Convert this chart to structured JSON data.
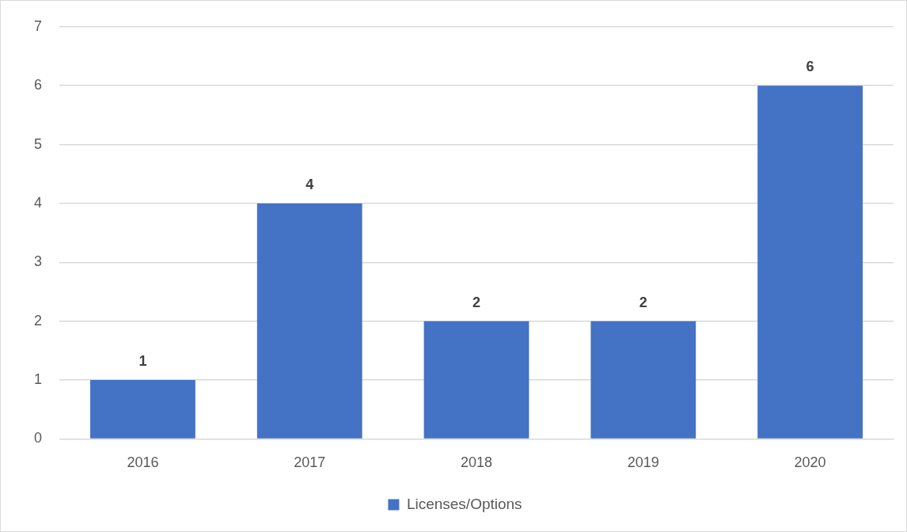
{
  "chart_data": {
    "type": "bar",
    "categories": [
      "2016",
      "2017",
      "2018",
      "2019",
      "2020"
    ],
    "series": [
      {
        "name": "Licenses/Options",
        "color": "#4472c4",
        "values": [
          1,
          4,
          2,
          2,
          6
        ]
      }
    ],
    "ylim": [
      0,
      7
    ],
    "yticks": [
      0,
      1,
      2,
      3,
      4,
      5,
      6,
      7
    ],
    "grid": "y",
    "legend": "bottom",
    "data_labels": true
  }
}
